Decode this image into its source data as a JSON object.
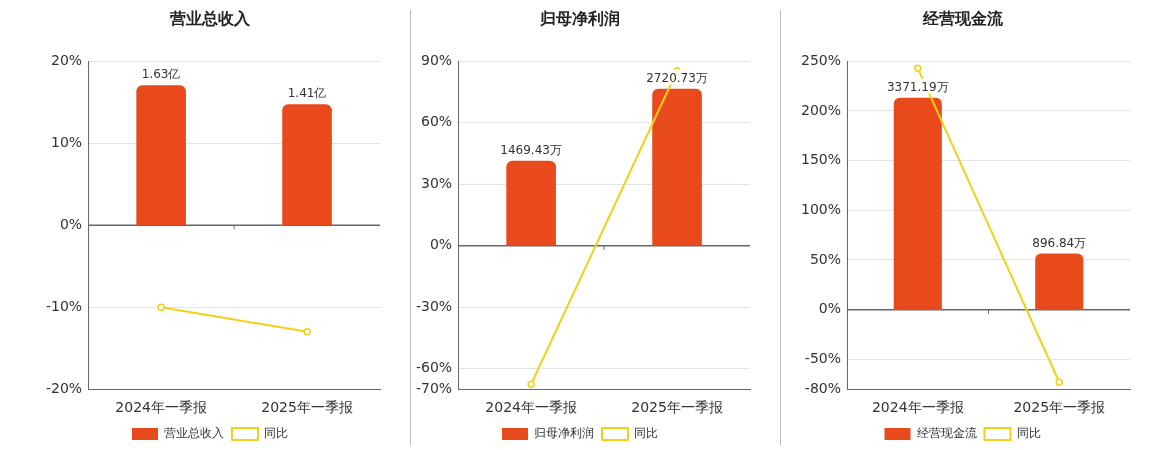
{
  "chart_data": [
    {
      "type": "bar",
      "title": "营业总收入",
      "categories": [
        "2024年一季报",
        "2025年一季报"
      ],
      "series": [
        {
          "name": "营业总收入",
          "color": "#e84a1c",
          "values": [
            1.63,
            1.41
          ],
          "value_labels": [
            "1.63亿",
            "1.41亿"
          ],
          "axis": "y2"
        },
        {
          "name": "同比",
          "type": "line",
          "color": "#f5cf17",
          "values": [
            -10,
            -13
          ]
        }
      ],
      "ylim": [
        -20,
        20
      ],
      "yticks": [
        {
          "value": -20,
          "label": "-20%"
        },
        {
          "value": -10,
          "label": "-10%"
        },
        {
          "value": 0,
          "label": "0%"
        },
        {
          "value": 10,
          "label": "10%"
        },
        {
          "value": 20,
          "label": "20%"
        }
      ],
      "y2lim": [
        -1.91,
        1.91
      ],
      "grid": "y",
      "legend": "bottom",
      "marker": "circle",
      "tick_labels": "xy"
    },
    {
      "type": "bar",
      "title": "归母净利润",
      "categories": [
        "2024年一季报",
        "2025年一季报"
      ],
      "series": [
        {
          "name": "归母净利润",
          "color": "#e84a1c",
          "values": [
            1469.43,
            2720.73
          ],
          "value_labels": [
            "1469.43万",
            "2720.73万"
          ],
          "axis": "y2"
        },
        {
          "name": "同比",
          "type": "line",
          "color": "#f5cf17",
          "values": [
            -67.6,
            85.2
          ]
        }
      ],
      "ylim": [
        -70,
        90
      ],
      "yticks": [
        {
          "value": -70,
          "label": "-70%"
        },
        {
          "value": -60,
          "label": "-60%"
        },
        {
          "value": -30,
          "label": "-30%"
        },
        {
          "value": 0,
          "label": "0%"
        },
        {
          "value": 30,
          "label": "30%"
        },
        {
          "value": 60,
          "label": "60%"
        },
        {
          "value": 90,
          "label": "90%"
        }
      ],
      "y2lim": [
        -2500,
        3200
      ],
      "grid": "y",
      "legend": "bottom",
      "marker": "circle",
      "tick_labels": "xy"
    },
    {
      "type": "bar",
      "title": "经营现金流",
      "categories": [
        "2024年一季报",
        "2025年一季报"
      ],
      "series": [
        {
          "name": "经营现金流",
          "color": "#e84a1c",
          "values": [
            3371.19,
            896.84
          ],
          "value_labels": [
            "3371.19万",
            "896.84万"
          ],
          "axis": "y2"
        },
        {
          "name": "同比",
          "type": "line",
          "color": "#f5cf17",
          "values": [
            243,
            -73
          ]
        }
      ],
      "ylim": [
        -80,
        250
      ],
      "yticks": [
        {
          "value": -80,
          "label": "-80%"
        },
        {
          "value": -50,
          "label": "-50%"
        },
        {
          "value": 0,
          "label": "0%"
        },
        {
          "value": 50,
          "label": "50%"
        },
        {
          "value": 100,
          "label": "100%"
        },
        {
          "value": 150,
          "label": "150%"
        },
        {
          "value": 200,
          "label": "200%"
        },
        {
          "value": 250,
          "label": "250%"
        }
      ],
      "y2lim": [
        -1260,
        3950
      ],
      "grid": "y",
      "legend": "bottom",
      "marker": "circle",
      "tick_labels": "xy"
    }
  ]
}
